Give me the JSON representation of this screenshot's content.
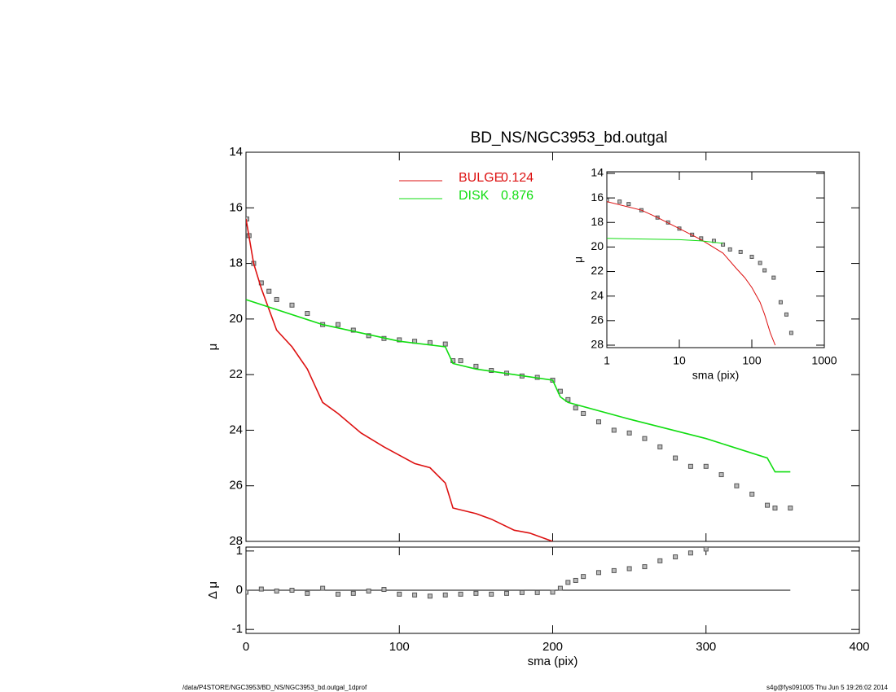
{
  "chart_data": [
    {
      "type": "line",
      "title": "BD_NS/NGC3953_bd.outgal",
      "ylabel": "μ",
      "xlim": [
        0,
        400
      ],
      "xticks": [
        0,
        100,
        200,
        300,
        400
      ],
      "ylim": [
        14,
        28
      ],
      "yticks": [
        14,
        16,
        18,
        20,
        22,
        24,
        26,
        28
      ],
      "y_reversed": true,
      "legend": true,
      "series": [
        {
          "style": "points",
          "color": "#555555",
          "x": [
            0.5,
            2,
            5,
            10,
            15,
            20,
            30,
            40,
            50,
            60,
            70,
            80,
            90,
            100,
            110,
            120,
            130,
            135,
            140,
            150,
            160,
            170,
            180,
            190,
            200,
            205,
            210,
            215,
            220,
            230,
            240,
            250,
            260,
            270,
            280,
            290,
            300,
            310,
            320,
            330,
            340,
            345,
            355
          ],
          "values": [
            16.4,
            17.0,
            18.0,
            18.7,
            19.0,
            19.3,
            19.5,
            19.8,
            20.2,
            20.2,
            20.4,
            20.6,
            20.7,
            20.75,
            20.8,
            20.85,
            20.9,
            21.5,
            21.5,
            21.7,
            21.85,
            21.95,
            22.05,
            22.1,
            22.2,
            22.6,
            22.9,
            23.2,
            23.4,
            23.7,
            24.0,
            24.1,
            24.3,
            24.6,
            25.0,
            25.3,
            25.3,
            25.6,
            26.0,
            26.3,
            26.7,
            26.8,
            26.8
          ]
        },
        {
          "style": "line",
          "name": "BULGE",
          "fraction": 0.124,
          "color": "#dd1111",
          "x": [
            0,
            5,
            10,
            20,
            30,
            40,
            50,
            60,
            75,
            90,
            100,
            110,
            120,
            130,
            135,
            150,
            160,
            175,
            185,
            200
          ],
          "values": [
            16.4,
            18.0,
            18.9,
            20.4,
            21.0,
            21.8,
            23.0,
            23.4,
            24.1,
            24.6,
            24.9,
            25.2,
            25.35,
            25.9,
            26.8,
            27.0,
            27.2,
            27.6,
            27.7,
            28.0
          ]
        },
        {
          "style": "line",
          "name": "DISK",
          "fraction": 0.876,
          "color": "#11dd11",
          "x": [
            0,
            50,
            100,
            130,
            135,
            150,
            200,
            205,
            210,
            250,
            300,
            340,
            345,
            355
          ],
          "values": [
            19.3,
            20.2,
            20.8,
            21.0,
            21.6,
            21.8,
            22.2,
            22.8,
            23.0,
            23.6,
            24.3,
            25.0,
            25.5,
            25.5
          ]
        }
      ]
    },
    {
      "type": "scatter",
      "xlabel": "sma (pix)",
      "ylabel": "Δ μ",
      "xlim": [
        0,
        400
      ],
      "xticks": [
        0,
        100,
        200,
        300,
        400
      ],
      "ylim": [
        -1.1,
        1.1
      ],
      "yticks": [
        1,
        0,
        -1
      ],
      "reference_line": {
        "y": 0,
        "x": [
          0,
          355
        ]
      },
      "series": [
        {
          "style": "points",
          "color": "#555555",
          "x": [
            0,
            10,
            20,
            30,
            40,
            50,
            60,
            70,
            80,
            90,
            100,
            110,
            120,
            130,
            140,
            150,
            160,
            170,
            180,
            190,
            200,
            205,
            210,
            215,
            220,
            230,
            240,
            250,
            260,
            270,
            280,
            290,
            300
          ],
          "values": [
            -0.05,
            0.03,
            -0.02,
            0.0,
            -0.08,
            0.05,
            -0.1,
            -0.08,
            -0.02,
            0.02,
            -0.1,
            -0.12,
            -0.15,
            -0.12,
            -0.1,
            -0.08,
            -0.1,
            -0.08,
            -0.06,
            -0.06,
            -0.05,
            0.05,
            0.2,
            0.25,
            0.35,
            0.45,
            0.5,
            0.55,
            0.6,
            0.75,
            0.85,
            0.95,
            1.05
          ]
        }
      ]
    },
    {
      "type": "line",
      "xlabel": "sma (pix)",
      "ylabel": "μ",
      "xscale": "log",
      "xlim": [
        1,
        1000
      ],
      "xticks": [
        1,
        10,
        100,
        1000
      ],
      "ylim": [
        13.87,
        28.2
      ],
      "yticks": [
        14,
        16,
        18,
        20,
        22,
        24,
        26,
        28
      ],
      "y_reversed": true,
      "series": [
        {
          "style": "points",
          "color": "#555555",
          "x": [
            1,
            1.5,
            2,
            3,
            5,
            7,
            10,
            15,
            20,
            30,
            40,
            50,
            70,
            100,
            130,
            150,
            200,
            250,
            300,
            350
          ],
          "values": [
            16.2,
            16.3,
            16.5,
            17.0,
            17.6,
            18.0,
            18.5,
            19.0,
            19.3,
            19.5,
            19.8,
            20.2,
            20.4,
            20.8,
            21.3,
            21.9,
            22.5,
            24.5,
            25.5,
            27.0
          ]
        },
        {
          "style": "line",
          "color": "#dd1111",
          "x": [
            1,
            3,
            5,
            10,
            20,
            40,
            60,
            80,
            100,
            130,
            150,
            180,
            210
          ],
          "values": [
            16.3,
            17.0,
            17.6,
            18.5,
            19.4,
            20.5,
            21.7,
            22.5,
            23.3,
            24.5,
            25.5,
            27.0,
            28.0
          ]
        },
        {
          "style": "line",
          "color": "#11dd11",
          "x": [
            1,
            10,
            20,
            40
          ],
          "values": [
            19.3,
            19.4,
            19.5,
            19.7
          ]
        }
      ]
    }
  ],
  "footer": {
    "left": "/data/P4STORE/NGC3953/BD_NS/NGC3953_bd.outgal_1dprof",
    "right": "s4g@fys091005  Thu Jun  5 19:26:02 2014"
  }
}
